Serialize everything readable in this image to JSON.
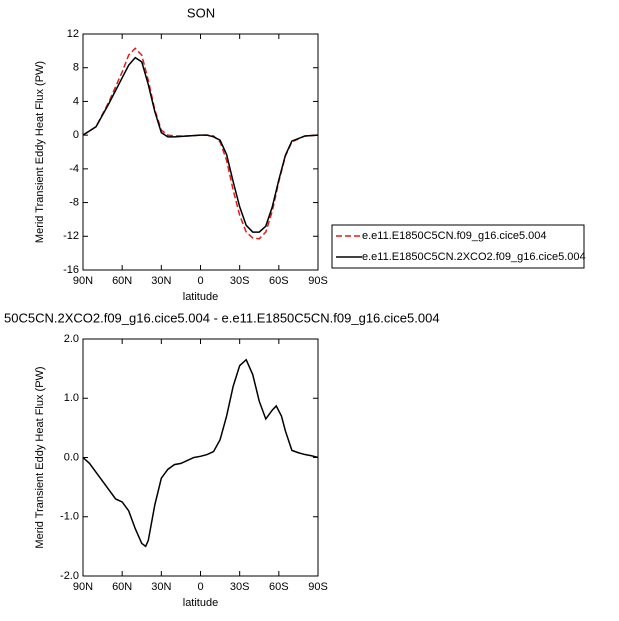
{
  "chart_data": [
    {
      "type": "line",
      "title": "SON",
      "ylabel": "Merid Transient Eddy Heat Flux (PW)",
      "xlabel": "latitude",
      "x": [
        90,
        80,
        70,
        60,
        55,
        50,
        45,
        40,
        35,
        30,
        25,
        20,
        10,
        0,
        -5,
        -10,
        -15,
        -20,
        -25,
        -30,
        -35,
        -40,
        -45,
        -50,
        -55,
        -60,
        -65,
        -70,
        -80,
        -90
      ],
      "xlim": [
        90,
        -90
      ],
      "xticks": [
        {
          "value": 90,
          "label": "90N"
        },
        {
          "value": 60,
          "label": "60N"
        },
        {
          "value": 30,
          "label": "30N"
        },
        0,
        {
          "value": -30,
          "label": "30S"
        },
        {
          "value": -60,
          "label": "60S"
        },
        {
          "value": -90,
          "label": "90S"
        }
      ],
      "ylim": [
        -16,
        12
      ],
      "yticks": [
        -16,
        -12,
        -8,
        -4,
        0,
        4,
        8,
        12
      ],
      "series": [
        {
          "name": "e.e11.E1850C5CN.f09_g16.cice5.004",
          "color": "#e41a1c",
          "dash": true,
          "values": [
            0,
            1,
            4,
            7.5,
            9.5,
            10.3,
            9.5,
            6.5,
            3,
            0.6,
            0,
            -0.1,
            -0.1,
            0,
            0,
            -0.1,
            -0.8,
            -3,
            -6.5,
            -9.5,
            -11.5,
            -12.2,
            -12.3,
            -11.5,
            -9,
            -5.5,
            -2.5,
            -0.8,
            -0.1,
            0
          ]
        },
        {
          "name": "e.e11.E1850C5CN.2XCO2.f09_g16.cice5.004",
          "color": "#000000",
          "dash": false,
          "values": [
            0,
            1,
            3.8,
            6.8,
            8.3,
            9.2,
            8.7,
            6,
            2.8,
            0.3,
            -0.2,
            -0.2,
            -0.1,
            0,
            0,
            -0.2,
            -0.6,
            -2.3,
            -5.5,
            -8.5,
            -10.7,
            -11.5,
            -11.5,
            -10.8,
            -8.5,
            -5.3,
            -2.4,
            -0.7,
            -0.1,
            0
          ]
        }
      ]
    },
    {
      "type": "line",
      "title": "50C5CN.2XCO2.f09_g16.cice5.004 - e.e11.E1850C5CN.f09_g16.cice5.004",
      "ylabel": "Merid Transient Eddy Heat Flux (PW)",
      "xlabel": "latitude",
      "x": [
        90,
        85,
        80,
        75,
        70,
        65,
        60,
        55,
        50,
        45,
        42,
        40,
        35,
        30,
        25,
        20,
        15,
        10,
        5,
        0,
        -5,
        -10,
        -15,
        -20,
        -25,
        -30,
        -35,
        -40,
        -45,
        -50,
        -55,
        -58,
        -62,
        -65,
        -70,
        -75,
        -80,
        -85,
        -90
      ],
      "xlim": [
        90,
        -90
      ],
      "xticks": [
        {
          "value": 90,
          "label": "90N"
        },
        {
          "value": 60,
          "label": "60N"
        },
        {
          "value": 30,
          "label": "30N"
        },
        0,
        {
          "value": -30,
          "label": "30S"
        },
        {
          "value": -60,
          "label": "60S"
        },
        {
          "value": -90,
          "label": "90S"
        }
      ],
      "ylim": [
        -2,
        2
      ],
      "yticks": [
        {
          "value": -2,
          "label": "-2.0"
        },
        {
          "value": -1,
          "label": "-1.0"
        },
        {
          "value": 0,
          "label": "0.0"
        },
        {
          "value": 1,
          "label": "1.0"
        },
        {
          "value": 2,
          "label": "2.0"
        }
      ],
      "series": [
        {
          "color": "#000000",
          "dash": false,
          "values": [
            0,
            -0.1,
            -0.25,
            -0.4,
            -0.55,
            -0.7,
            -0.75,
            -0.9,
            -1.2,
            -1.45,
            -1.5,
            -1.4,
            -0.8,
            -0.35,
            -0.2,
            -0.12,
            -0.1,
            -0.05,
            0,
            0.02,
            0.05,
            0.1,
            0.3,
            0.7,
            1.2,
            1.55,
            1.65,
            1.4,
            0.95,
            0.65,
            0.8,
            0.87,
            0.7,
            0.45,
            0.12,
            0.08,
            0.05,
            0.03,
            0
          ]
        }
      ]
    }
  ]
}
